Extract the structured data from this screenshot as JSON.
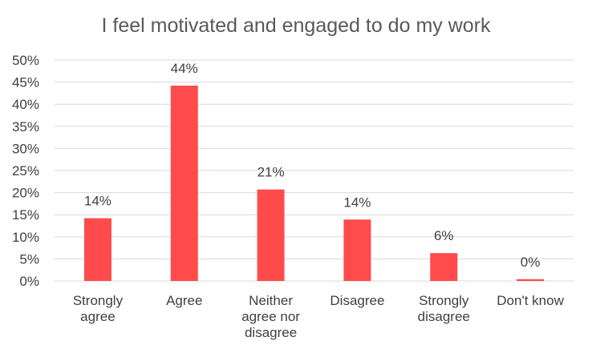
{
  "chart_data": {
    "type": "bar",
    "title": "I feel motivated and engaged to do my work",
    "categories": [
      [
        "Strongly",
        "agree"
      ],
      [
        "Agree"
      ],
      [
        "Neither",
        "agree nor",
        "disagree"
      ],
      [
        "Disagree"
      ],
      [
        "Strongly",
        "disagree"
      ],
      [
        "Don't know"
      ]
    ],
    "values": [
      14.2,
      44.2,
      20.7,
      13.9,
      6.3,
      0.4
    ],
    "data_labels": [
      "14%",
      "44%",
      "21%",
      "14%",
      "6%",
      "0%"
    ],
    "y_ticks": [
      "0%",
      "5%",
      "10%",
      "15%",
      "20%",
      "25%",
      "30%",
      "35%",
      "40%",
      "45%",
      "50%"
    ],
    "ylim": [
      0,
      50
    ],
    "grid": true,
    "bar_color": "#ff4b4b"
  }
}
